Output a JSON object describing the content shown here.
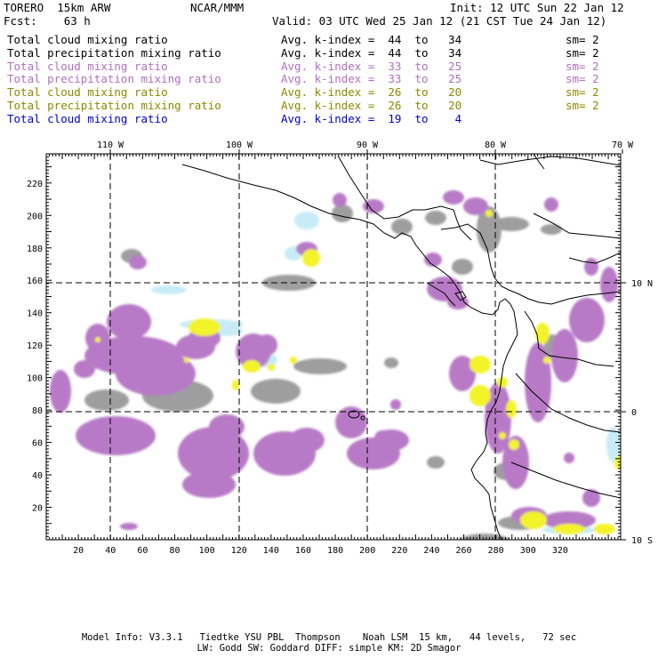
{
  "header": {
    "model": "TORERO  15km ARW",
    "org": "NCAR/MMM",
    "init": "Init: 12 UTC Sun 22 Jan 12",
    "fcst": "Fcst:    63 h",
    "valid": "Valid: 03 UTC Wed 25 Jan 12 (21 CST Tue 24 Jan 12)"
  },
  "legend": [
    {
      "field": "Total cloud mixing ratio",
      "index": "Avg. k-index =  44  to   34",
      "sm": "sm= 2",
      "color": "#000000"
    },
    {
      "field": "Total precipitation mixing ratio",
      "index": "Avg. k-index =  44  to   34",
      "sm": "sm= 2",
      "color": "#000000"
    },
    {
      "field": "Total cloud mixing ratio",
      "index": "Avg. k-index =  33  to   25",
      "sm": "sm= 2",
      "color": "#b070c0"
    },
    {
      "field": "Total precipitation mixing ratio",
      "index": "Avg. k-index =  33  to   25",
      "sm": "sm= 2",
      "color": "#b070c0"
    },
    {
      "field": "Total cloud mixing ratio",
      "index": "Avg. k-index =  26  to   20",
      "sm": "sm= 2",
      "color": "#8a8a00"
    },
    {
      "field": "Total precipitation mixing ratio",
      "index": "Avg. k-index =  26  to   20",
      "sm": "sm= 2",
      "color": "#8a8a00"
    },
    {
      "field": "Total cloud mixing ratio",
      "index": "Avg. k-index =  19  to    4",
      "sm": "",
      "color": "#0000cc"
    }
  ],
  "colors": {
    "purple": "#b87ac6",
    "gray": "#9e9e9e",
    "yellow": "#f3f32a",
    "lightblue": "#c8ecf7",
    "coast": "#000000"
  },
  "map": {
    "lon_labels": [
      "110 W",
      "100 W",
      "90 W",
      "80 W",
      "70 W"
    ],
    "lat_labels": [
      "10 N",
      "0",
      "10 S"
    ],
    "x_ticks": [
      "20",
      "40",
      "60",
      "80",
      "100",
      "120",
      "140",
      "160",
      "180",
      "200",
      "220",
      "240",
      "260",
      "280",
      "300",
      "320"
    ],
    "y_ticks": [
      "220",
      "200",
      "180",
      "160",
      "140",
      "120",
      "100",
      "80",
      "60",
      "40",
      "20"
    ]
  },
  "footer": {
    "line1": "Model Info: V3.3.1   Tiedtke YSU PBL  Thompson    Noah LSM  15 km,   44 levels,   72 sec",
    "line2": "LW: Godd SW: Goddard DIFF: simple KM: 2D Smagor"
  }
}
